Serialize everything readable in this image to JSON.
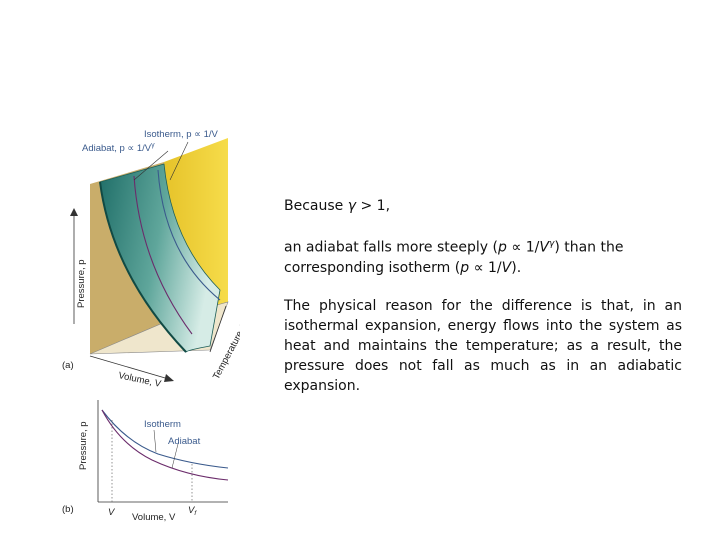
{
  "figure": {
    "top": {
      "isotherm_label": "Isotherm, p ∝ 1/V",
      "adiabat_label": "Adiabat, p ∝ 1/V",
      "adiabat_sup": "γ",
      "pressure_axis": "Pressure, p",
      "volume_axis": "Volume, V",
      "temperature_axis": "Temperature, T",
      "panel": "(a)"
    },
    "bottom": {
      "pressure_axis": "Pressure, p",
      "isotherm_label": "Isotherm",
      "adiabat_label": "Adiabat",
      "volume_axis": "Volume, V",
      "tick_v": "V",
      "tick_vf": "V",
      "tick_vf_sub": "f",
      "panel": "(b)"
    },
    "colors": {
      "surface_top": "#2f7f78",
      "surface_light": "#d6ece6",
      "yellow_wall": "#f2d23a",
      "tan_wall": "#c9ad6a",
      "isotherm_curve": "#3a5a8c",
      "adiabat_curve": "#6b2c6b"
    }
  },
  "text": {
    "line1_prefix": "Because ",
    "line1_gamma": "γ",
    "line1_suffix": " > 1,",
    "line2_a": "an adiabat falls more steeply (",
    "line2_p": "p",
    "line2_b": " ∝ 1/",
    "line2_V": "V",
    "line2_gamma": "γ",
    "line2_c": ") than the",
    "line3_a": "corresponding isotherm (",
    "line3_p": "p",
    "line3_b": " ∝ 1/",
    "line3_V": "V",
    "line3_c": ").",
    "paragraph": "The physical reason for the difference is that, in an isothermal expansion, energy flows into the system as heat and maintains the temperature; as a result, the pressure does not fall as much as in an adiabatic expansion."
  }
}
